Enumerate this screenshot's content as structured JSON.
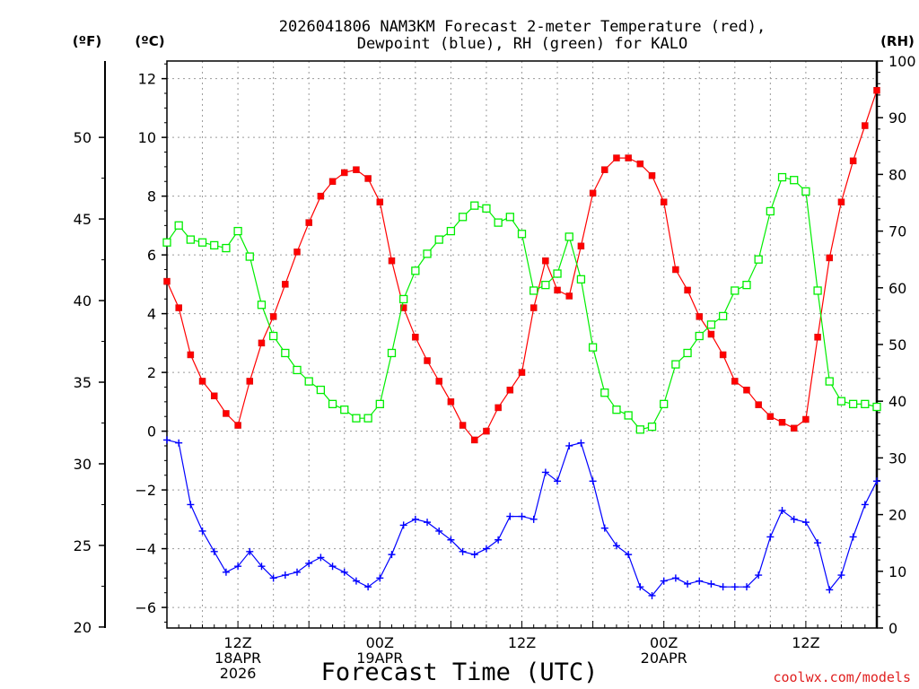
{
  "chart_data": {
    "type": "line",
    "title": "2026041806 NAM3KM Forecast 2-meter Temperature (red),",
    "subtitle": "Dewpoint (blue), RH (green) for KALO",
    "xlabel": "Forecast Time (UTC)",
    "credit": "coolwx.com/models",
    "units": {
      "fahrenheit": "(ºF)",
      "celsius": "(ºC)",
      "rh": "(RH)"
    },
    "x_range_hours": [
      0,
      60
    ],
    "celsius_axis": {
      "min": -6.7,
      "max": 12.6,
      "ticks": [
        -6,
        -4,
        -2,
        0,
        2,
        4,
        6,
        8,
        10,
        12
      ],
      "tick_labels": [
        "−6",
        "−4",
        "−2",
        "0",
        "2",
        "4",
        "6",
        "8",
        "10",
        "12"
      ]
    },
    "fahrenheit_axis": {
      "ticks": [
        20,
        25,
        30,
        35,
        40,
        45,
        50
      ],
      "tick_labels": [
        "20",
        "25",
        "30",
        "35",
        "40",
        "45",
        "50"
      ]
    },
    "rh_axis": {
      "min": 0,
      "max": 100,
      "ticks": [
        0,
        10,
        20,
        30,
        40,
        50,
        60,
        70,
        80,
        90,
        100
      ],
      "tick_labels": [
        "0",
        "10",
        "20",
        "30",
        "40",
        "50",
        "60",
        "70",
        "80",
        "90",
        "100"
      ]
    },
    "x_ticks": [
      {
        "hour": 6,
        "lines": [
          "12Z",
          "18APR",
          "2026"
        ]
      },
      {
        "hour": 18,
        "lines": [
          "00Z",
          "19APR"
        ]
      },
      {
        "hour": 30,
        "lines": [
          "12Z"
        ]
      },
      {
        "hour": 42,
        "lines": [
          "00Z",
          "20APR"
        ]
      },
      {
        "hour": 54,
        "lines": [
          "12Z"
        ]
      }
    ],
    "series": [
      {
        "name": "2-meter Temperature",
        "axis": "celsius",
        "color": "#ff0000",
        "marker": "filled-square",
        "points": [
          [
            0,
            5.1
          ],
          [
            1,
            4.2
          ],
          [
            2,
            2.6
          ],
          [
            3,
            1.7
          ],
          [
            4,
            1.2
          ],
          [
            5,
            0.6
          ],
          [
            6,
            0.2
          ],
          [
            7,
            1.7
          ],
          [
            8,
            3.0
          ],
          [
            9,
            3.9
          ],
          [
            10,
            5.0
          ],
          [
            11,
            6.1
          ],
          [
            12,
            7.1
          ],
          [
            13,
            8.0
          ],
          [
            14,
            8.5
          ],
          [
            15,
            8.8
          ],
          [
            16,
            8.9
          ],
          [
            17,
            8.6
          ],
          [
            18,
            7.8
          ],
          [
            19,
            5.8
          ],
          [
            20,
            4.2
          ],
          [
            21,
            3.2
          ],
          [
            22,
            2.4
          ],
          [
            23,
            1.7
          ],
          [
            24,
            1.0
          ],
          [
            25,
            0.2
          ],
          [
            26,
            -0.3
          ],
          [
            27,
            0.0
          ],
          [
            28,
            0.8
          ],
          [
            29,
            1.4
          ],
          [
            30,
            2.0
          ],
          [
            31,
            4.2
          ],
          [
            32,
            5.8
          ],
          [
            33,
            4.8
          ],
          [
            34,
            4.6
          ],
          [
            35,
            6.3
          ],
          [
            36,
            8.1
          ],
          [
            37,
            8.9
          ],
          [
            38,
            9.3
          ],
          [
            39,
            9.3
          ],
          [
            40,
            9.1
          ],
          [
            41,
            8.7
          ],
          [
            42,
            7.8
          ],
          [
            43,
            5.5
          ],
          [
            44,
            4.8
          ],
          [
            45,
            3.9
          ],
          [
            46,
            3.3
          ],
          [
            47,
            2.6
          ],
          [
            48,
            1.7
          ],
          [
            49,
            1.4
          ],
          [
            50,
            0.9
          ],
          [
            51,
            0.5
          ],
          [
            52,
            0.3
          ],
          [
            53,
            0.1
          ],
          [
            54,
            0.4
          ],
          [
            55,
            3.2
          ],
          [
            56,
            5.9
          ],
          [
            57,
            7.8
          ],
          [
            58,
            9.2
          ],
          [
            59,
            10.4
          ],
          [
            60,
            11.6
          ]
        ]
      },
      {
        "name": "Dewpoint",
        "axis": "celsius",
        "color": "#0000ff",
        "marker": "plus",
        "points": [
          [
            0,
            -0.3
          ],
          [
            1,
            -0.4
          ],
          [
            2,
            -2.5
          ],
          [
            3,
            -3.4
          ],
          [
            4,
            -4.1
          ],
          [
            5,
            -4.8
          ],
          [
            6,
            -4.6
          ],
          [
            7,
            -4.1
          ],
          [
            8,
            -4.6
          ],
          [
            9,
            -5.0
          ],
          [
            10,
            -4.9
          ],
          [
            11,
            -4.8
          ],
          [
            12,
            -4.5
          ],
          [
            13,
            -4.3
          ],
          [
            14,
            -4.6
          ],
          [
            15,
            -4.8
          ],
          [
            16,
            -5.1
          ],
          [
            17,
            -5.3
          ],
          [
            18,
            -5.0
          ],
          [
            19,
            -4.2
          ],
          [
            20,
            -3.2
          ],
          [
            21,
            -3.0
          ],
          [
            22,
            -3.1
          ],
          [
            23,
            -3.4
          ],
          [
            24,
            -3.7
          ],
          [
            25,
            -4.1
          ],
          [
            26,
            -4.2
          ],
          [
            27,
            -4.0
          ],
          [
            28,
            -3.7
          ],
          [
            29,
            -2.9
          ],
          [
            30,
            -2.9
          ],
          [
            31,
            -3.0
          ],
          [
            32,
            -1.4
          ],
          [
            33,
            -1.7
          ],
          [
            34,
            -0.5
          ],
          [
            35,
            -0.4
          ],
          [
            36,
            -1.7
          ],
          [
            37,
            -3.3
          ],
          [
            38,
            -3.9
          ],
          [
            39,
            -4.2
          ],
          [
            40,
            -5.3
          ],
          [
            41,
            -5.6
          ],
          [
            42,
            -5.1
          ],
          [
            43,
            -5.0
          ],
          [
            44,
            -5.2
          ],
          [
            45,
            -5.1
          ],
          [
            46,
            -5.2
          ],
          [
            47,
            -5.3
          ],
          [
            48,
            -5.3
          ],
          [
            49,
            -5.3
          ],
          [
            50,
            -4.9
          ],
          [
            51,
            -3.6
          ],
          [
            52,
            -2.7
          ],
          [
            53,
            -3.0
          ],
          [
            54,
            -3.1
          ],
          [
            55,
            -3.8
          ],
          [
            56,
            -5.4
          ],
          [
            57,
            -4.9
          ],
          [
            58,
            -3.6
          ],
          [
            59,
            -2.5
          ],
          [
            60,
            -1.7
          ]
        ]
      },
      {
        "name": "RH",
        "axis": "rh",
        "color": "#00ee00",
        "marker": "open-square",
        "points": [
          [
            0,
            68
          ],
          [
            1,
            71
          ],
          [
            2,
            68.5
          ],
          [
            3,
            68
          ],
          [
            4,
            67.5
          ],
          [
            5,
            67
          ],
          [
            6,
            70
          ],
          [
            7,
            65.5
          ],
          [
            8,
            57
          ],
          [
            9,
            51.5
          ],
          [
            10,
            48.5
          ],
          [
            11,
            45.5
          ],
          [
            12,
            43.5
          ],
          [
            13,
            42
          ],
          [
            14,
            39.5
          ],
          [
            15,
            38.5
          ],
          [
            16,
            37
          ],
          [
            17,
            37
          ],
          [
            18,
            39.5
          ],
          [
            19,
            48.5
          ],
          [
            20,
            58
          ],
          [
            21,
            63
          ],
          [
            22,
            66
          ],
          [
            23,
            68.5
          ],
          [
            24,
            70
          ],
          [
            25,
            72.5
          ],
          [
            26,
            74.5
          ],
          [
            27,
            74
          ],
          [
            28,
            71.5
          ],
          [
            29,
            72.5
          ],
          [
            30,
            69.5
          ],
          [
            31,
            59.5
          ],
          [
            32,
            60.5
          ],
          [
            33,
            62.5
          ],
          [
            34,
            69
          ],
          [
            35,
            61.5
          ],
          [
            36,
            49.5
          ],
          [
            37,
            41.5
          ],
          [
            38,
            38.5
          ],
          [
            39,
            37.5
          ],
          [
            40,
            35
          ],
          [
            41,
            35.5
          ],
          [
            42,
            39.5
          ],
          [
            43,
            46.5
          ],
          [
            44,
            48.5
          ],
          [
            45,
            51.5
          ],
          [
            46,
            53.5
          ],
          [
            47,
            55
          ],
          [
            48,
            59.5
          ],
          [
            49,
            60.5
          ],
          [
            50,
            65
          ],
          [
            51,
            73.5
          ],
          [
            52,
            79.5
          ],
          [
            53,
            79
          ],
          [
            54,
            77
          ],
          [
            55,
            59.5
          ],
          [
            56,
            43.5
          ],
          [
            57,
            40
          ],
          [
            58,
            39.5
          ],
          [
            59,
            39.5
          ],
          [
            60,
            39
          ]
        ]
      }
    ]
  }
}
